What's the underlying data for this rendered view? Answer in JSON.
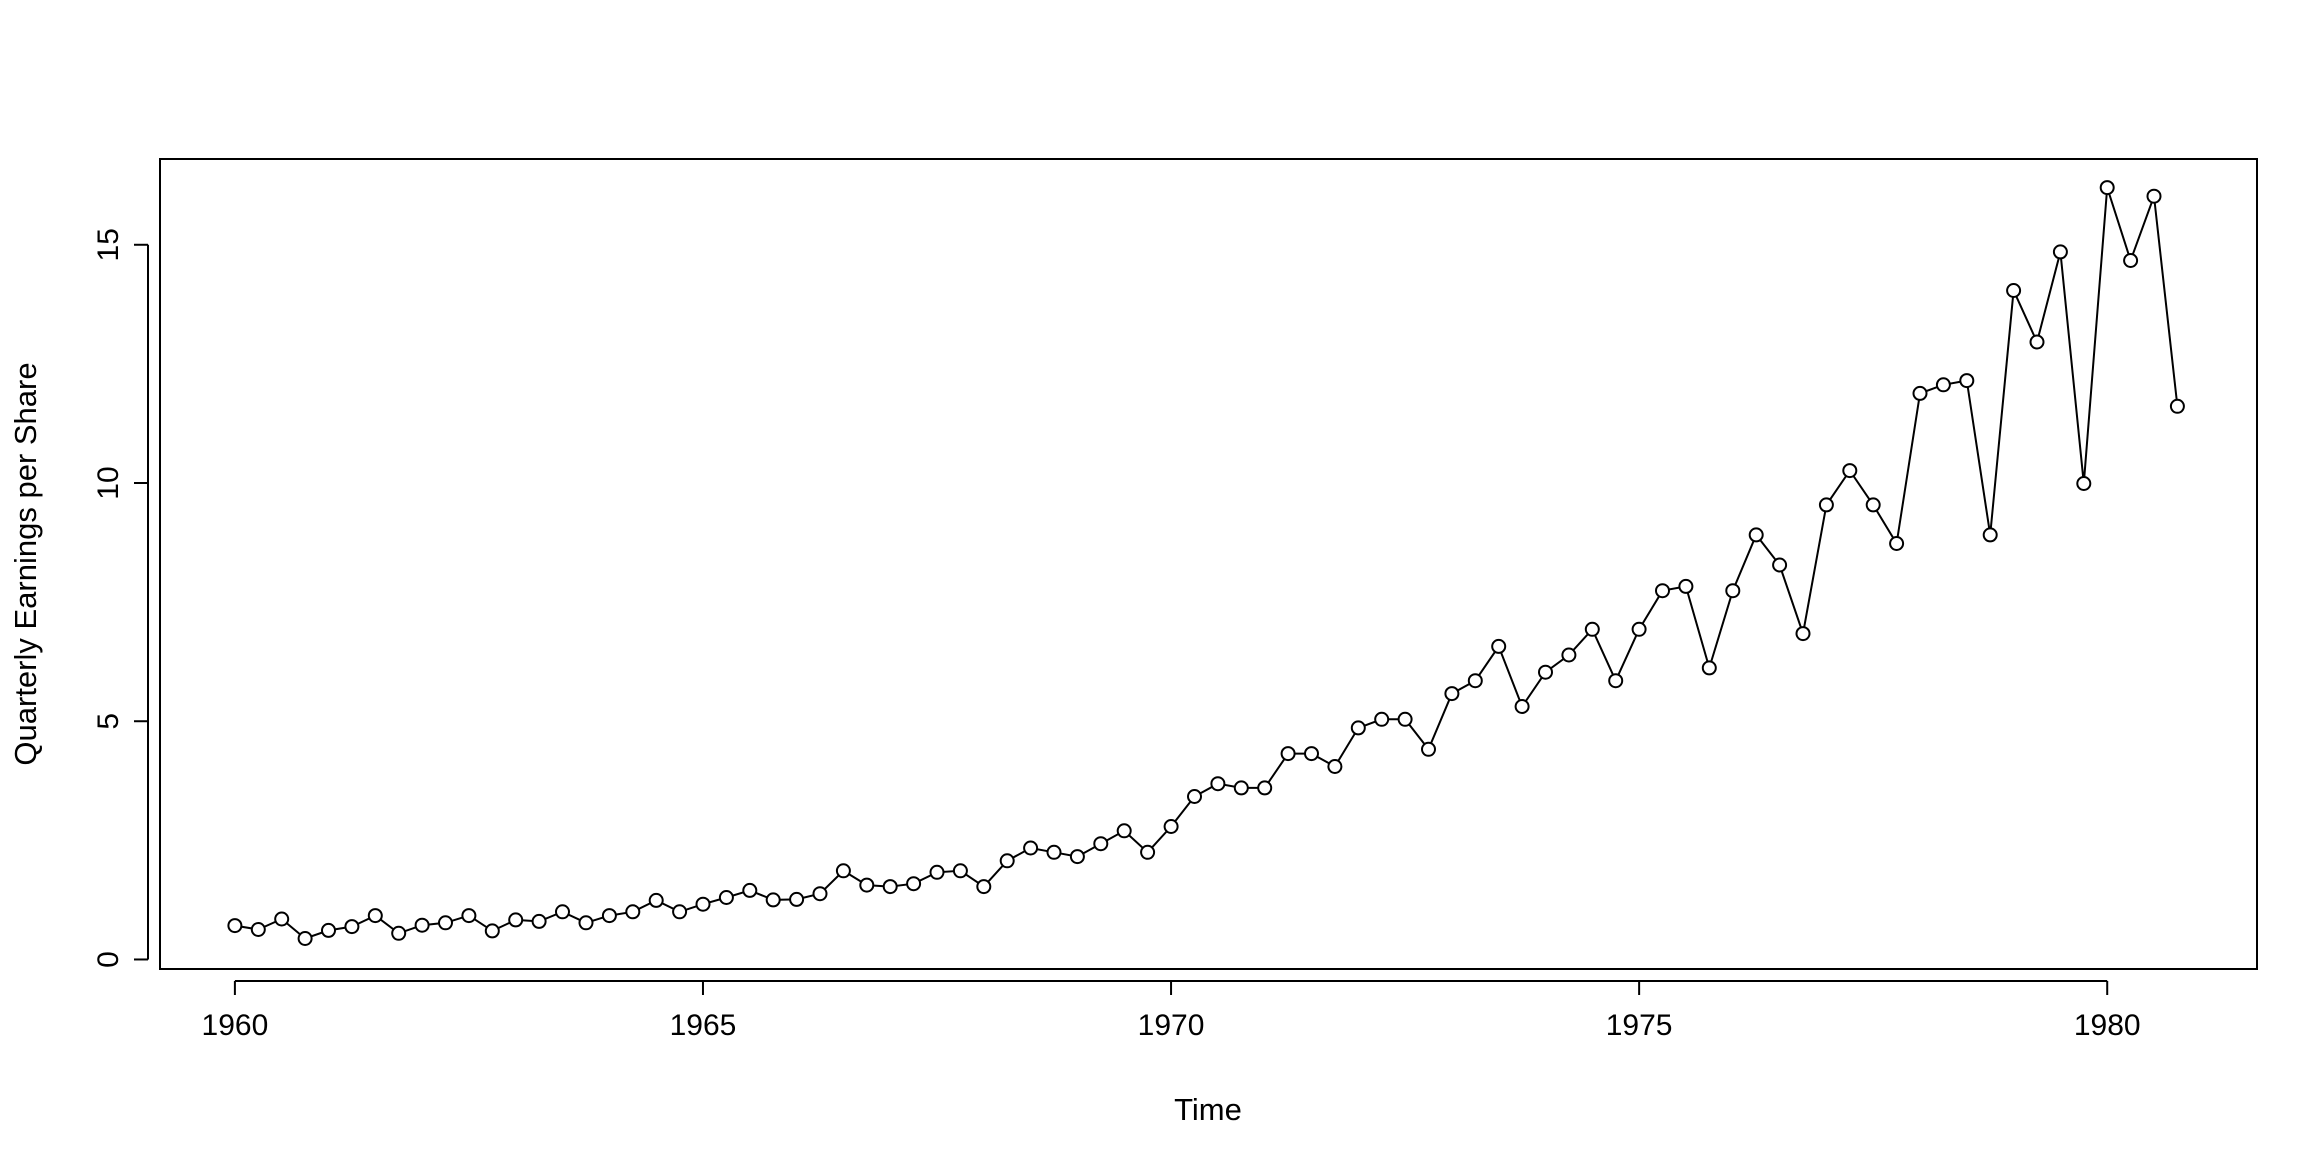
{
  "chart_data": {
    "type": "line",
    "markers": "open-circle",
    "title": "",
    "xlabel": "Time",
    "ylabel": "Quarterly Earnings per Share",
    "xlim": [
      1959.2,
      1981.6
    ],
    "ylim": [
      -0.2,
      16.8
    ],
    "x_ticks": [
      1960,
      1965,
      1970,
      1975,
      1980
    ],
    "x_tick_labels": [
      "1960",
      "1965",
      "1970",
      "1975",
      "1980"
    ],
    "y_ticks": [
      0,
      5,
      10,
      15
    ],
    "y_tick_labels": [
      "0",
      "5",
      "10",
      "15"
    ],
    "grid": false,
    "x_start": 1960,
    "x_step": 0.25,
    "values": [
      0.71,
      0.63,
      0.85,
      0.44,
      0.61,
      0.69,
      0.92,
      0.55,
      0.72,
      0.77,
      0.92,
      0.6,
      0.83,
      0.8,
      1.0,
      0.77,
      0.92,
      1.0,
      1.24,
      1.0,
      1.16,
      1.3,
      1.45,
      1.25,
      1.26,
      1.38,
      1.86,
      1.56,
      1.53,
      1.59,
      1.83,
      1.86,
      1.53,
      2.07,
      2.34,
      2.25,
      2.16,
      2.43,
      2.7,
      2.25,
      2.79,
      3.42,
      3.69,
      3.6,
      3.6,
      4.32,
      4.32,
      4.05,
      4.86,
      5.04,
      5.04,
      4.41,
      5.58,
      5.85,
      6.57,
      5.31,
      6.03,
      6.39,
      6.93,
      5.85,
      6.93,
      7.74,
      7.83,
      6.12,
      7.74,
      8.91,
      8.28,
      6.84,
      9.54,
      10.26,
      9.54,
      8.73,
      11.88,
      12.06,
      12.15,
      8.91,
      14.04,
      12.96,
      14.85,
      9.99,
      16.2,
      14.67,
      16.02,
      11.61
    ]
  }
}
